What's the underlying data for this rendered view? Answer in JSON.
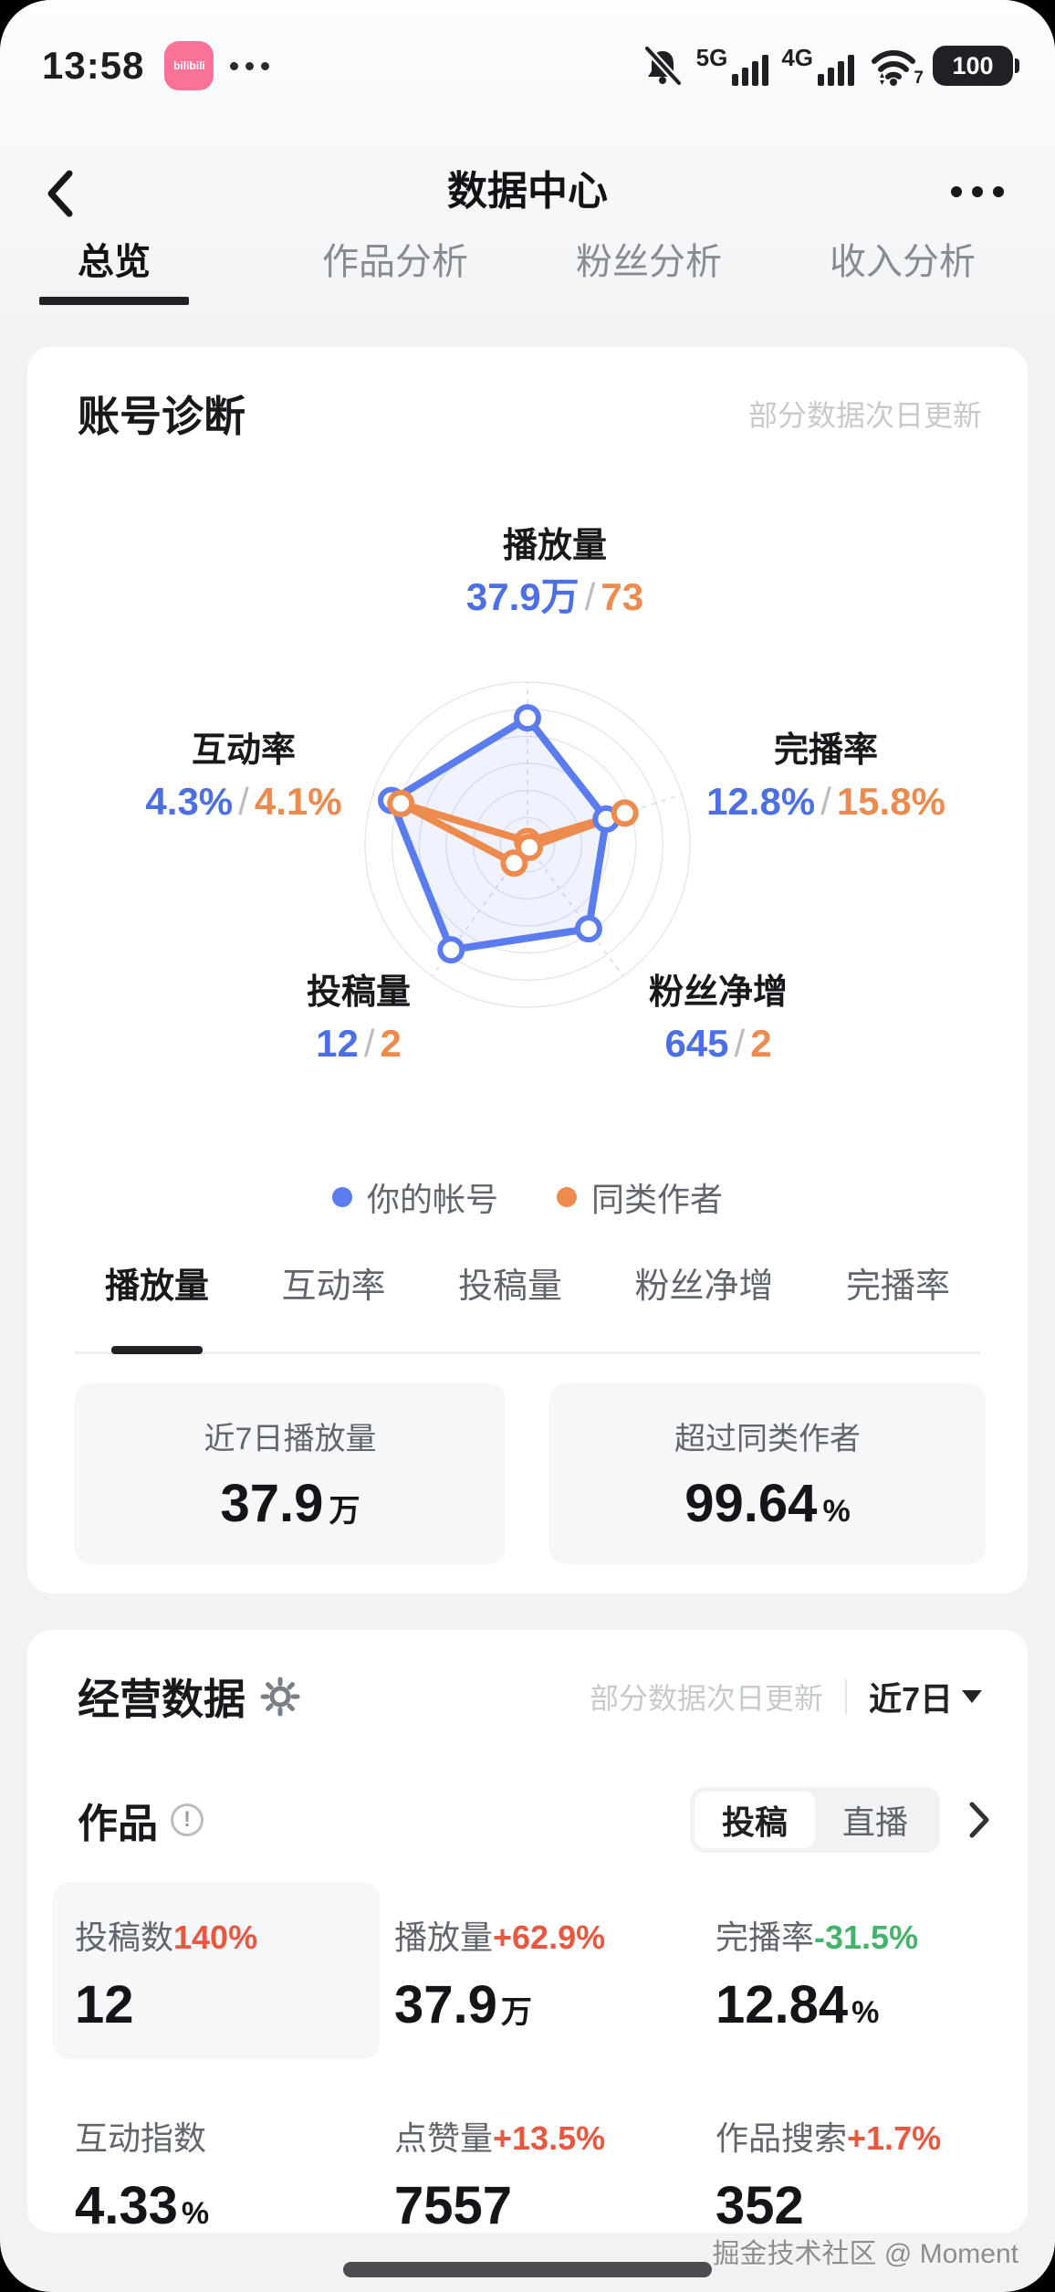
{
  "status_bar": {
    "time": "13:58",
    "app_label": "bilibili",
    "network1": "5G",
    "network2": "4G",
    "wifi_badge": "7",
    "battery": "100"
  },
  "nav": {
    "title": "数据中心"
  },
  "tabs": [
    {
      "label": "总览",
      "active": true
    },
    {
      "label": "作品分析",
      "active": false
    },
    {
      "label": "粉丝分析",
      "active": false
    },
    {
      "label": "收入分析",
      "active": false
    }
  ],
  "diagnosis": {
    "title": "账号诊断",
    "note": "部分数据次日更新",
    "value_separator": "/",
    "axes": [
      {
        "name": "播放量",
        "you": "37.9万",
        "peer": "73"
      },
      {
        "name": "完播率",
        "you": "12.8%",
        "peer": "15.8%"
      },
      {
        "name": "粉丝净增",
        "you": "645",
        "peer": "2"
      },
      {
        "name": "投稿量",
        "you": "12",
        "peer": "2"
      },
      {
        "name": "互动率",
        "you": "4.3%",
        "peer": "4.1%"
      }
    ],
    "legend": [
      {
        "label": "你的帐号",
        "color": "#5b7cef"
      },
      {
        "label": "同类作者",
        "color": "#ed8a4e"
      }
    ],
    "sub_tabs": [
      {
        "label": "播放量",
        "active": true
      },
      {
        "label": "互动率",
        "active": false
      },
      {
        "label": "投稿量",
        "active": false
      },
      {
        "label": "粉丝净增",
        "active": false
      },
      {
        "label": "完播率",
        "active": false
      }
    ],
    "stats": [
      {
        "label": "近7日播放量",
        "value": "37.9",
        "suffix": "万"
      },
      {
        "label": "超过同类作者",
        "value": "99.64",
        "suffix": "%"
      }
    ]
  },
  "business": {
    "title": "经营数据",
    "note": "部分数据次日更新",
    "period": "近7日",
    "section": {
      "title": "作品",
      "toggle": [
        "投稿",
        "直播"
      ]
    },
    "metrics": [
      {
        "label": "投稿数",
        "change": "140%",
        "change_class": "up",
        "value": "12",
        "suffix": "",
        "highlighted": true
      },
      {
        "label": "播放量",
        "change": "+62.9%",
        "change_class": "up",
        "value": "37.9",
        "suffix": "万"
      },
      {
        "label": "完播率",
        "change": "-31.5%",
        "change_class": "down",
        "value": "12.84",
        "suffix": "%"
      },
      {
        "label": "互动指数",
        "change": "",
        "change_class": "",
        "value": "4.33",
        "suffix": "%"
      },
      {
        "label": "点赞量",
        "change": "+13.5%",
        "change_class": "up",
        "value": "7557",
        "suffix": ""
      },
      {
        "label": "作品搜索",
        "change": "+1.7%",
        "change_class": "up",
        "value": "352",
        "suffix": ""
      }
    ]
  },
  "watermark": "掘金技术社区 @ Moment",
  "colors": {
    "accent_blue": "#4c6fe6",
    "accent_orange": "#ed8a4e",
    "positive_red": "#e8573f",
    "negative_green": "#45b36b",
    "brand_pink": "#fb7299"
  },
  "chart_data": {
    "type": "radar",
    "title": "账号诊断",
    "rings": 6,
    "axes": [
      "播放量",
      "完播率",
      "粉丝净增",
      "投稿量",
      "互动率"
    ],
    "series": [
      {
        "name": "你的帐号",
        "color": "#5b7cef",
        "values_display": [
          "37.9万",
          "12.8%",
          "645",
          "12",
          "4.3%"
        ],
        "values_norm": [
          0.78,
          0.51,
          0.64,
          0.8,
          0.88
        ]
      },
      {
        "name": "同类作者",
        "color": "#ed8a4e",
        "values_display": [
          "73",
          "15.8%",
          "2",
          "2",
          "4.1%"
        ],
        "values_norm": [
          0.02,
          0.63,
          0.02,
          0.14,
          0.82
        ]
      }
    ]
  }
}
